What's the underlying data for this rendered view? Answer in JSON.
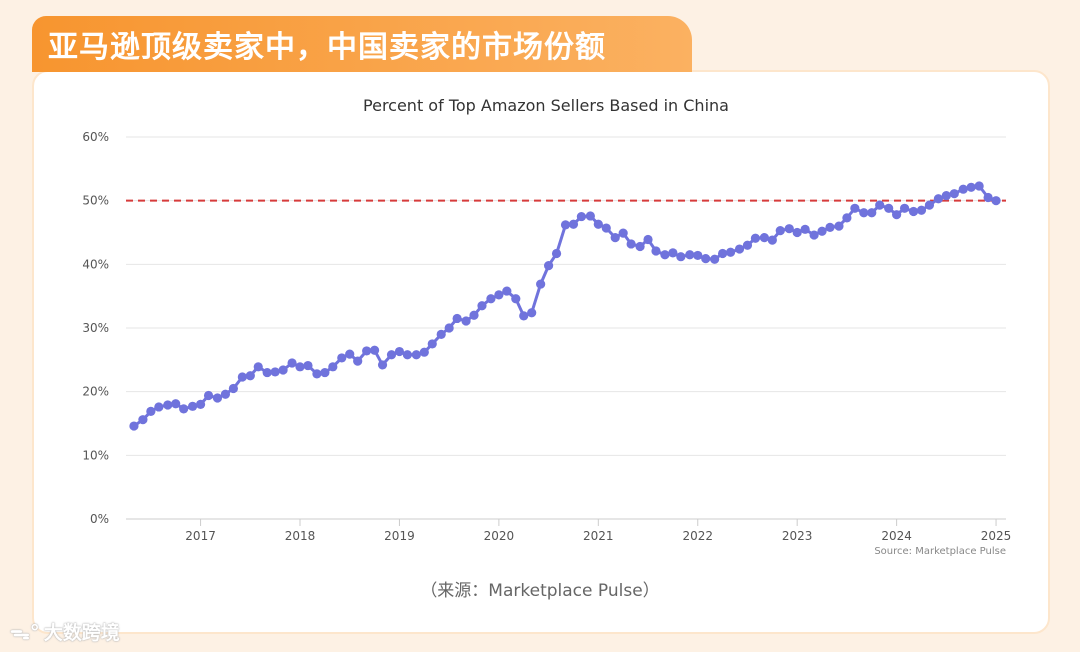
{
  "banner": {
    "title": "亚马逊顶级卖家中，中国卖家的市场份额"
  },
  "caption": "（来源：Marketplace Pulse）",
  "watermark": {
    "text": "大数跨境",
    "icon": "brand-logo-icon"
  },
  "colors": {
    "series": "#7073dc",
    "reference": "#d63b3b",
    "grid": "#e6e6e6",
    "accent": "#f7952f"
  },
  "chart_data": {
    "type": "line",
    "title": "Percent of Top Amazon Sellers Based in China",
    "source": "Source: Marketplace Pulse",
    "xlim": [
      2016.25,
      2025.1
    ],
    "ylim": [
      0,
      60
    ],
    "x_ticks": [
      "2017",
      "2018",
      "2019",
      "2020",
      "2021",
      "2022",
      "2023",
      "2024",
      "2025"
    ],
    "y_ticks": [
      "0%",
      "10%",
      "20%",
      "30%",
      "40%",
      "50%",
      "60%"
    ],
    "reference_line": {
      "y": 50,
      "style": "dashed"
    },
    "grid": "horizontal",
    "series": [
      {
        "x": [
          2016.33,
          2016.42,
          2016.5,
          2016.58,
          2016.67,
          2016.75,
          2016.83,
          2016.92,
          2017.0,
          2017.08,
          2017.17,
          2017.25,
          2017.33,
          2017.42,
          2017.5,
          2017.58,
          2017.67,
          2017.75,
          2017.83,
          2017.92,
          2018.0,
          2018.08,
          2018.17,
          2018.25,
          2018.33,
          2018.42,
          2018.5,
          2018.58,
          2018.67,
          2018.75,
          2018.83,
          2018.92,
          2019.0,
          2019.08,
          2019.17,
          2019.25,
          2019.33,
          2019.42,
          2019.5,
          2019.58,
          2019.67,
          2019.75,
          2019.83,
          2019.92,
          2020.0,
          2020.08,
          2020.17,
          2020.25,
          2020.33,
          2020.42,
          2020.5,
          2020.58,
          2020.67,
          2020.75,
          2020.83,
          2020.92,
          2021.0,
          2021.08,
          2021.17,
          2021.25,
          2021.33,
          2021.42,
          2021.5,
          2021.58,
          2021.67,
          2021.75,
          2021.83,
          2021.92,
          2022.0,
          2022.08,
          2022.17,
          2022.25,
          2022.33,
          2022.42,
          2022.5,
          2022.58,
          2022.67,
          2022.75,
          2022.83,
          2022.92,
          2023.0,
          2023.08,
          2023.17,
          2023.25,
          2023.33,
          2023.42,
          2023.5,
          2023.58,
          2023.67,
          2023.75,
          2023.83,
          2023.92,
          2024.0,
          2024.08,
          2024.17,
          2024.25,
          2024.33,
          2024.42,
          2024.5,
          2024.58,
          2024.67,
          2024.75,
          2024.83,
          2024.92,
          2025.0
        ],
        "y": [
          14.6,
          15.6,
          16.9,
          17.6,
          17.9,
          18.1,
          17.3,
          17.7,
          18.0,
          19.4,
          19.0,
          19.6,
          20.5,
          22.3,
          22.5,
          23.9,
          23.0,
          23.1,
          23.4,
          24.5,
          23.9,
          24.1,
          22.8,
          23.0,
          23.9,
          25.3,
          25.9,
          24.8,
          26.4,
          26.5,
          24.2,
          25.8,
          26.3,
          25.8,
          25.8,
          26.2,
          27.5,
          29.0,
          30.0,
          31.5,
          31.1,
          32.0,
          33.5,
          34.6,
          35.2,
          35.8,
          34.6,
          31.9,
          32.4,
          36.9,
          39.8,
          41.7,
          46.2,
          46.3,
          47.5,
          47.6,
          46.3,
          45.7,
          44.2,
          44.9,
          43.2,
          42.8,
          43.9,
          42.1,
          41.5,
          41.8,
          41.2,
          41.5,
          41.4,
          40.9,
          40.8,
          41.7,
          41.9,
          42.4,
          43.0,
          44.1,
          44.2,
          43.8,
          45.3,
          45.6,
          45.0,
          45.5,
          44.6,
          45.2,
          45.8,
          46.0,
          47.3,
          48.8,
          48.1,
          48.1,
          49.3,
          48.8,
          47.8,
          48.8,
          48.3,
          48.5,
          49.3,
          50.3,
          50.8,
          51.1,
          51.8,
          52.1,
          52.3,
          50.5,
          50.0
        ]
      }
    ]
  }
}
